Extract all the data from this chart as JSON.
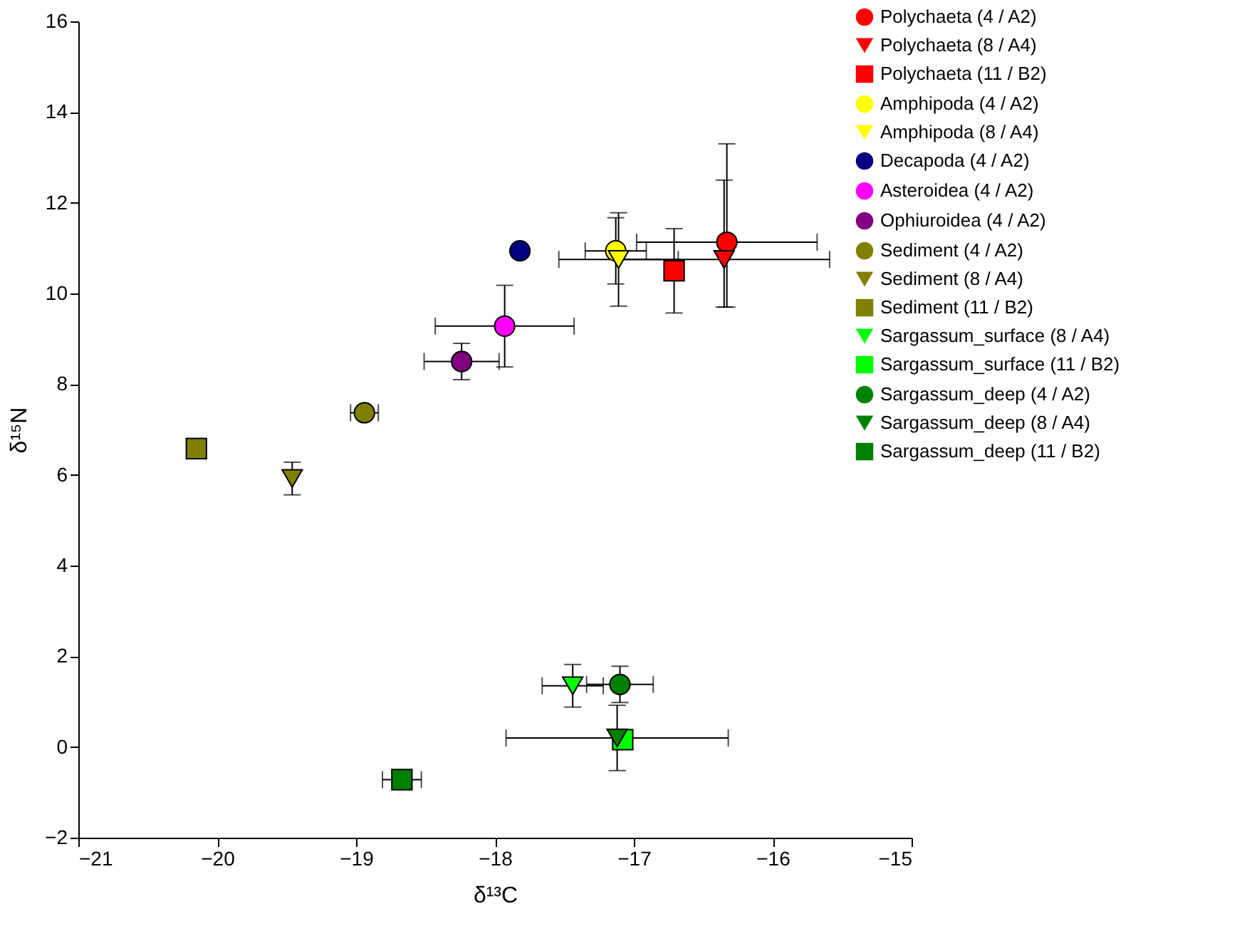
{
  "chart_data": {
    "type": "scatter",
    "xlabel": "δ¹³C",
    "ylabel": "δ¹⁵N",
    "xlim": [
      -21,
      -15
    ],
    "xticks": [
      -21,
      -20,
      -19,
      -18,
      -17,
      -16,
      -15
    ],
    "ylim": [
      -2,
      16
    ],
    "yticks": [
      -2,
      0,
      2,
      4,
      6,
      8,
      10,
      12,
      14,
      16
    ],
    "grid": false,
    "legend": "top right",
    "series": [
      {
        "name": "Polychaeta (4 / A2)",
        "color": "#ff0000",
        "marker": "circle",
        "x": [
          -16.33
        ],
        "values": [
          11.13
        ],
        "errors": [
          [
            9.7,
            13.3
          ]
        ],
        "xerrors": [
          0.65
        ]
      },
      {
        "name": "Polychaeta (8 / A4)",
        "color": "#ff0000",
        "marker": "triangle",
        "x": [
          -16.35
        ],
        "values": [
          10.75
        ],
        "errors": [
          [
            9.7,
            12.5
          ]
        ],
        "xerrors": [
          0.76
        ]
      },
      {
        "name": "Polychaeta (11 / B2)",
        "color": "#ff0000",
        "marker": "square",
        "x": [
          -16.71
        ],
        "values": [
          10.5
        ],
        "errors": [
          0.93
        ],
        "xerrors": [
          null
        ]
      },
      {
        "name": "Amphipoda (4 / A2)",
        "color": "#ffff00",
        "marker": "circle",
        "x": [
          -17.13
        ],
        "values": [
          10.94
        ],
        "errors": [
          0.73
        ],
        "xerrors": [
          0.22
        ]
      },
      {
        "name": "Amphipoda (8 / A4)",
        "color": "#ffff00",
        "marker": "triangle",
        "x": [
          -17.11
        ],
        "values": [
          10.75
        ],
        "errors": [
          1.03
        ],
        "xerrors": [
          0.43
        ]
      },
      {
        "name": "Decapoda (4 / A2)",
        "color": "#000080",
        "marker": "circle",
        "x": [
          -17.82
        ],
        "values": [
          10.94
        ],
        "errors": [
          null
        ],
        "xerrors": [
          null
        ]
      },
      {
        "name": "Asteroidea (4 / A2)",
        "color": "#ff00ff",
        "marker": "circle",
        "x": [
          -17.93
        ],
        "values": [
          9.28
        ],
        "errors": [
          0.9
        ],
        "xerrors": [
          0.5
        ]
      },
      {
        "name": "Ophiuroidea (4 / A2)",
        "color": "#800080",
        "marker": "circle",
        "x": [
          -18.24
        ],
        "values": [
          8.5
        ],
        "errors": [
          0.4
        ],
        "xerrors": [
          0.27
        ]
      },
      {
        "name": "Sediment (4 / A2)",
        "color": "#808000",
        "marker": "circle",
        "x": [
          -18.94
        ],
        "values": [
          7.37
        ],
        "errors": [
          null
        ],
        "xerrors": [
          0.1
        ]
      },
      {
        "name": "Sediment (8 / A4)",
        "color": "#808000",
        "marker": "triangle",
        "x": [
          -19.46
        ],
        "values": [
          5.92
        ],
        "errors": [
          0.36
        ],
        "xerrors": [
          null
        ]
      },
      {
        "name": "Sediment (11 / B2)",
        "color": "#808000",
        "marker": "square",
        "x": [
          -20.15
        ],
        "values": [
          6.58
        ],
        "errors": [
          0.2
        ],
        "xerrors": [
          null
        ]
      },
      {
        "name": "Sargassum_surface (8 / A4)",
        "color": "#00ff00",
        "marker": "triangle",
        "x": [
          -17.44
        ],
        "values": [
          1.35
        ],
        "errors": [
          0.47
        ],
        "xerrors": [
          0.22
        ]
      },
      {
        "name": "Sargassum_surface (11 / B2)",
        "color": "#00ff00",
        "marker": "square",
        "x": [
          -17.08
        ],
        "values": [
          0.16
        ],
        "errors": [
          null
        ],
        "xerrors": [
          null
        ]
      },
      {
        "name": "Sargassum_deep (4 / A2)",
        "color": "#008000",
        "marker": "circle",
        "x": [
          -17.1
        ],
        "values": [
          1.38
        ],
        "errors": [
          0.4
        ],
        "xerrors": [
          0.24
        ]
      },
      {
        "name": "Sargassum_deep (8 / A4)",
        "color": "#008000",
        "marker": "triangle",
        "x": [
          -17.12
        ],
        "values": [
          0.2
        ],
        "errors": [
          0.72
        ],
        "xerrors": [
          0.8
        ]
      },
      {
        "name": "Sargassum_deep (11 / B2)",
        "color": "#008000",
        "marker": "square",
        "x": [
          -18.67
        ],
        "values": [
          -0.72
        ],
        "errors": [
          null
        ],
        "xerrors": [
          0.14
        ]
      }
    ]
  }
}
